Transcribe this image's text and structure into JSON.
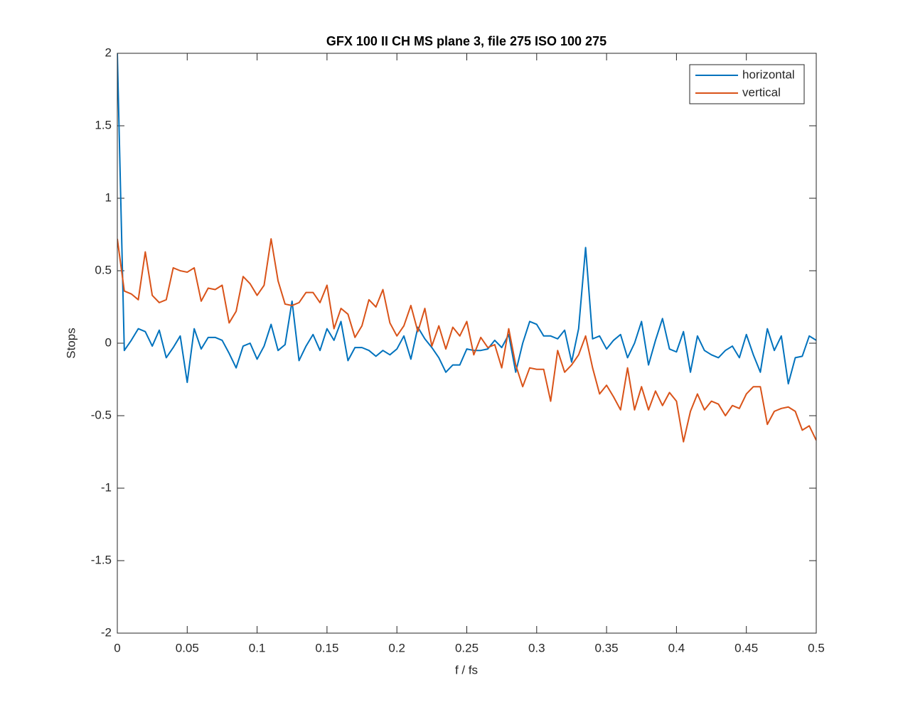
{
  "chart_data": {
    "type": "line",
    "title": "GFX 100 II CH MS plane 3, file 275 ISO 100 275",
    "x_label": "f / fs",
    "y_label": "Stops",
    "x": [
      0,
      0.005,
      0.01,
      0.015,
      0.02,
      0.025,
      0.03,
      0.035,
      0.04,
      0.045,
      0.05,
      0.055,
      0.06,
      0.065,
      0.07,
      0.075,
      0.08,
      0.085,
      0.09,
      0.095,
      0.1,
      0.105,
      0.11,
      0.115,
      0.12,
      0.125,
      0.13,
      0.135,
      0.14,
      0.145,
      0.15,
      0.155,
      0.16,
      0.165,
      0.17,
      0.175,
      0.18,
      0.185,
      0.19,
      0.195,
      0.2,
      0.205,
      0.21,
      0.215,
      0.22,
      0.225,
      0.23,
      0.235,
      0.24,
      0.245,
      0.25,
      0.255,
      0.26,
      0.265,
      0.27,
      0.275,
      0.28,
      0.285,
      0.29,
      0.295,
      0.3,
      0.305,
      0.31,
      0.315,
      0.32,
      0.325,
      0.33,
      0.335,
      0.34,
      0.345,
      0.35,
      0.355,
      0.36,
      0.365,
      0.37,
      0.375,
      0.38,
      0.385,
      0.39,
      0.395,
      0.4,
      0.405,
      0.41,
      0.415,
      0.42,
      0.425,
      0.43,
      0.435,
      0.44,
      0.445,
      0.45,
      0.455,
      0.46,
      0.465,
      0.47,
      0.475,
      0.48,
      0.485,
      0.49,
      0.495,
      0.5
    ],
    "series": [
      {
        "name": "horizontal",
        "color": "#0072bd",
        "values": [
          2,
          -0.05,
          0.02,
          0.1,
          0.08,
          -0.02,
          0.09,
          -0.1,
          -0.03,
          0.05,
          -0.27,
          0.1,
          -0.04,
          0.04,
          0.04,
          0.02,
          -0.07,
          -0.17,
          -0.02,
          0,
          -0.11,
          -0.02,
          0.13,
          -0.05,
          -0.01,
          0.29,
          -0.12,
          -0.02,
          0.06,
          -0.05,
          0.1,
          0.02,
          0.15,
          -0.12,
          -0.03,
          -0.03,
          -0.05,
          -0.09,
          -0.05,
          -0.08,
          -0.04,
          0.05,
          -0.11,
          0.11,
          0.03,
          -0.03,
          -0.1,
          -0.2,
          -0.15,
          -0.15,
          -0.04,
          -0.05,
          -0.05,
          -0.04,
          0.02,
          -0.03,
          0.06,
          -0.2,
          0,
          0.15,
          0.13,
          0.05,
          0.05,
          0.03,
          0.09,
          -0.13,
          0.1,
          0.66,
          0.03,
          0.05,
          -0.04,
          0.02,
          0.06,
          -0.1,
          0,
          0.15,
          -0.15,
          0.02,
          0.17,
          -0.04,
          -0.06,
          0.08,
          -0.2,
          0.05,
          -0.05,
          -0.08,
          -0.1,
          -0.05,
          -0.02,
          -0.1,
          0.06,
          -0.08,
          -0.2,
          0.1,
          -0.05,
          0.05,
          -0.28,
          -0.1,
          -0.09,
          0.05,
          0.02
        ]
      },
      {
        "name": "vertical",
        "color": "#d95319",
        "values": [
          0.72,
          0.36,
          0.34,
          0.3,
          0.63,
          0.33,
          0.28,
          0.3,
          0.52,
          0.5,
          0.49,
          0.52,
          0.29,
          0.38,
          0.37,
          0.4,
          0.14,
          0.22,
          0.46,
          0.41,
          0.33,
          0.4,
          0.72,
          0.43,
          0.27,
          0.26,
          0.28,
          0.35,
          0.35,
          0.28,
          0.4,
          0.1,
          0.24,
          0.2,
          0.04,
          0.12,
          0.3,
          0.25,
          0.37,
          0.14,
          0.05,
          0.12,
          0.26,
          0.08,
          0.24,
          -0.02,
          0.12,
          -0.04,
          0.11,
          0.05,
          0.15,
          -0.08,
          0.04,
          -0.03,
          -0.01,
          -0.17,
          0.1,
          -0.15,
          -0.3,
          -0.17,
          -0.18,
          -0.18,
          -0.4,
          -0.05,
          -0.2,
          -0.15,
          -0.08,
          0.05,
          -0.17,
          -0.35,
          -0.29,
          -0.37,
          -0.46,
          -0.17,
          -0.46,
          -0.3,
          -0.46,
          -0.33,
          -0.43,
          -0.34,
          -0.4,
          -0.68,
          -0.47,
          -0.35,
          -0.46,
          -0.4,
          -0.42,
          -0.5,
          -0.43,
          -0.45,
          -0.35,
          -0.3,
          -0.3,
          -0.56,
          -0.47,
          -0.45,
          -0.44,
          -0.47,
          -0.6,
          -0.57,
          -0.67
        ]
      }
    ],
    "xlim": [
      0,
      0.5
    ],
    "xticks": [
      0,
      0.05,
      0.1,
      0.15,
      0.2,
      0.25,
      0.3,
      0.35,
      0.4,
      0.45,
      0.5
    ],
    "ylim": [
      -2,
      2
    ],
    "yticks": [
      -2,
      -1.5,
      -1,
      -0.5,
      0,
      0.5,
      1,
      1.5,
      2
    ],
    "grid": false,
    "legend_position": "top-right"
  }
}
